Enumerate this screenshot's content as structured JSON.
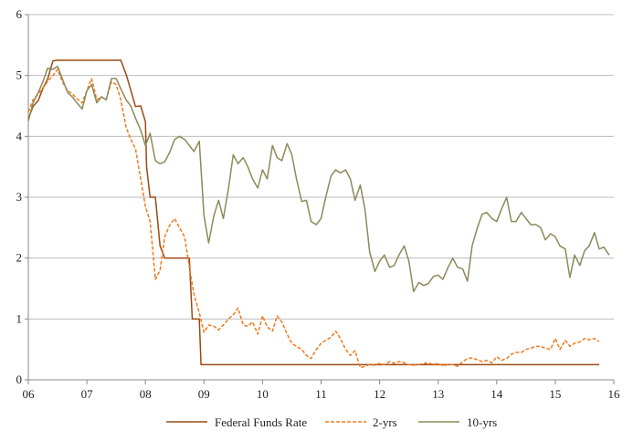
{
  "chart_data": {
    "type": "line",
    "title": "",
    "xlabel": "",
    "ylabel": "",
    "xlim": [
      6,
      16
    ],
    "ylim": [
      0,
      6
    ],
    "x_ticks": [
      {
        "value": 6,
        "label": "06"
      },
      {
        "value": 7,
        "label": "07"
      },
      {
        "value": 8,
        "label": "08"
      },
      {
        "value": 9,
        "label": "09"
      },
      {
        "value": 10,
        "label": "10"
      },
      {
        "value": 11,
        "label": "11"
      },
      {
        "value": 12,
        "label": "12"
      },
      {
        "value": 13,
        "label": "13"
      },
      {
        "value": 14,
        "label": "14"
      },
      {
        "value": 15,
        "label": "15"
      },
      {
        "value": 16,
        "label": "16"
      }
    ],
    "y_ticks": [
      {
        "value": 0,
        "label": "0"
      },
      {
        "value": 1,
        "label": "1"
      },
      {
        "value": 2,
        "label": "2"
      },
      {
        "value": 3,
        "label": "3"
      },
      {
        "value": 4,
        "label": "4"
      },
      {
        "value": 5,
        "label": "5"
      },
      {
        "value": 6,
        "label": "6"
      }
    ],
    "grid": "horizontal",
    "legend_position": "bottom",
    "series": [
      {
        "name": "Federal Funds Rate",
        "color": "#9c4a13",
        "dash": "solid",
        "points": [
          [
            6.0,
            4.29
          ],
          [
            6.08,
            4.49
          ],
          [
            6.17,
            4.59
          ],
          [
            6.25,
            4.79
          ],
          [
            6.33,
            4.94
          ],
          [
            6.42,
            5.24
          ],
          [
            6.5,
            5.25
          ],
          [
            6.58,
            5.25
          ],
          [
            6.67,
            5.25
          ],
          [
            6.75,
            5.25
          ],
          [
            6.83,
            5.25
          ],
          [
            6.92,
            5.25
          ],
          [
            7.0,
            5.25
          ],
          [
            7.08,
            5.25
          ],
          [
            7.17,
            5.25
          ],
          [
            7.25,
            5.25
          ],
          [
            7.33,
            5.25
          ],
          [
            7.42,
            5.25
          ],
          [
            7.5,
            5.25
          ],
          [
            7.58,
            5.25
          ],
          [
            7.67,
            5.02
          ],
          [
            7.75,
            4.76
          ],
          [
            7.83,
            4.49
          ],
          [
            7.92,
            4.5
          ],
          [
            8.0,
            4.24
          ],
          [
            8.02,
            3.5
          ],
          [
            8.08,
            3.0
          ],
          [
            8.17,
            3.0
          ],
          [
            8.25,
            2.2
          ],
          [
            8.33,
            2.0
          ],
          [
            8.42,
            2.0
          ],
          [
            8.5,
            2.0
          ],
          [
            8.58,
            2.0
          ],
          [
            8.67,
            2.0
          ],
          [
            8.75,
            2.0
          ],
          [
            8.8,
            1.0
          ],
          [
            8.83,
            1.0
          ],
          [
            8.92,
            1.0
          ],
          [
            8.95,
            0.25
          ],
          [
            9.0,
            0.25
          ],
          [
            9.5,
            0.25
          ],
          [
            10.0,
            0.25
          ],
          [
            10.5,
            0.25
          ],
          [
            11.0,
            0.25
          ],
          [
            11.5,
            0.25
          ],
          [
            12.0,
            0.25
          ],
          [
            12.5,
            0.25
          ],
          [
            13.0,
            0.25
          ],
          [
            13.5,
            0.25
          ],
          [
            14.0,
            0.25
          ],
          [
            14.5,
            0.25
          ],
          [
            15.0,
            0.25
          ],
          [
            15.5,
            0.25
          ],
          [
            15.75,
            0.25
          ]
        ]
      },
      {
        "name": "2-yrs",
        "color": "#f07a1c",
        "dash": "dashed",
        "points": [
          [
            6.0,
            4.4
          ],
          [
            6.08,
            4.6
          ],
          [
            6.17,
            4.7
          ],
          [
            6.25,
            4.8
          ],
          [
            6.33,
            4.9
          ],
          [
            6.42,
            5.0
          ],
          [
            6.5,
            5.1
          ],
          [
            6.58,
            4.9
          ],
          [
            6.67,
            4.75
          ],
          [
            6.75,
            4.7
          ],
          [
            6.83,
            4.62
          ],
          [
            6.92,
            4.55
          ],
          [
            7.0,
            4.75
          ],
          [
            7.08,
            4.95
          ],
          [
            7.17,
            4.6
          ],
          [
            7.25,
            4.65
          ],
          [
            7.33,
            4.6
          ],
          [
            7.42,
            4.9
          ],
          [
            7.5,
            4.85
          ],
          [
            7.58,
            4.6
          ],
          [
            7.67,
            4.15
          ],
          [
            7.75,
            3.95
          ],
          [
            7.83,
            3.8
          ],
          [
            7.92,
            3.3
          ],
          [
            8.0,
            2.85
          ],
          [
            8.08,
            2.6
          ],
          [
            8.17,
            1.65
          ],
          [
            8.25,
            1.8
          ],
          [
            8.33,
            2.35
          ],
          [
            8.42,
            2.55
          ],
          [
            8.5,
            2.65
          ],
          [
            8.58,
            2.5
          ],
          [
            8.67,
            2.35
          ],
          [
            8.75,
            1.85
          ],
          [
            8.83,
            1.4
          ],
          [
            8.92,
            1.1
          ],
          [
            9.0,
            0.78
          ],
          [
            9.08,
            0.9
          ],
          [
            9.17,
            0.88
          ],
          [
            9.25,
            0.82
          ],
          [
            9.33,
            0.9
          ],
          [
            9.42,
            1.0
          ],
          [
            9.5,
            1.07
          ],
          [
            9.58,
            1.18
          ],
          [
            9.67,
            0.9
          ],
          [
            9.75,
            0.88
          ],
          [
            9.83,
            0.95
          ],
          [
            9.92,
            0.75
          ],
          [
            10.0,
            1.05
          ],
          [
            10.08,
            0.87
          ],
          [
            10.17,
            0.8
          ],
          [
            10.25,
            1.05
          ],
          [
            10.33,
            0.95
          ],
          [
            10.42,
            0.75
          ],
          [
            10.5,
            0.6
          ],
          [
            10.58,
            0.55
          ],
          [
            10.67,
            0.5
          ],
          [
            10.75,
            0.4
          ],
          [
            10.83,
            0.35
          ],
          [
            10.92,
            0.5
          ],
          [
            11.0,
            0.6
          ],
          [
            11.08,
            0.65
          ],
          [
            11.17,
            0.7
          ],
          [
            11.25,
            0.8
          ],
          [
            11.33,
            0.68
          ],
          [
            11.42,
            0.5
          ],
          [
            11.5,
            0.4
          ],
          [
            11.58,
            0.48
          ],
          [
            11.67,
            0.2
          ],
          [
            11.75,
            0.22
          ],
          [
            11.83,
            0.25
          ],
          [
            11.92,
            0.24
          ],
          [
            12.0,
            0.27
          ],
          [
            12.08,
            0.25
          ],
          [
            12.17,
            0.3
          ],
          [
            12.25,
            0.27
          ],
          [
            12.33,
            0.3
          ],
          [
            12.42,
            0.28
          ],
          [
            12.5,
            0.25
          ],
          [
            12.58,
            0.24
          ],
          [
            12.67,
            0.25
          ],
          [
            12.75,
            0.27
          ],
          [
            12.83,
            0.28
          ],
          [
            12.92,
            0.25
          ],
          [
            13.0,
            0.27
          ],
          [
            13.08,
            0.23
          ],
          [
            13.17,
            0.25
          ],
          [
            13.25,
            0.25
          ],
          [
            13.33,
            0.22
          ],
          [
            13.42,
            0.3
          ],
          [
            13.5,
            0.35
          ],
          [
            13.58,
            0.36
          ],
          [
            13.67,
            0.33
          ],
          [
            13.75,
            0.3
          ],
          [
            13.83,
            0.32
          ],
          [
            13.92,
            0.28
          ],
          [
            14.0,
            0.38
          ],
          [
            14.08,
            0.32
          ],
          [
            14.17,
            0.35
          ],
          [
            14.25,
            0.42
          ],
          [
            14.33,
            0.45
          ],
          [
            14.42,
            0.45
          ],
          [
            14.5,
            0.5
          ],
          [
            14.58,
            0.52
          ],
          [
            14.67,
            0.55
          ],
          [
            14.75,
            0.55
          ],
          [
            14.83,
            0.52
          ],
          [
            14.92,
            0.5
          ],
          [
            15.0,
            0.68
          ],
          [
            15.08,
            0.5
          ],
          [
            15.17,
            0.65
          ],
          [
            15.25,
            0.55
          ],
          [
            15.33,
            0.6
          ],
          [
            15.42,
            0.62
          ],
          [
            15.5,
            0.68
          ],
          [
            15.58,
            0.66
          ],
          [
            15.67,
            0.68
          ],
          [
            15.75,
            0.63
          ]
        ]
      },
      {
        "name": "10-yrs",
        "color": "#8c8a5a",
        "dash": "solid",
        "points": [
          [
            6.0,
            4.25
          ],
          [
            6.08,
            4.55
          ],
          [
            6.17,
            4.72
          ],
          [
            6.25,
            4.9
          ],
          [
            6.33,
            5.12
          ],
          [
            6.42,
            5.1
          ],
          [
            6.5,
            5.15
          ],
          [
            6.58,
            4.95
          ],
          [
            6.67,
            4.72
          ],
          [
            6.75,
            4.65
          ],
          [
            6.83,
            4.55
          ],
          [
            6.92,
            4.45
          ],
          [
            7.0,
            4.75
          ],
          [
            7.08,
            4.85
          ],
          [
            7.17,
            4.55
          ],
          [
            7.25,
            4.65
          ],
          [
            7.33,
            4.6
          ],
          [
            7.42,
            4.95
          ],
          [
            7.5,
            4.95
          ],
          [
            7.58,
            4.78
          ],
          [
            7.67,
            4.6
          ],
          [
            7.75,
            4.5
          ],
          [
            7.83,
            4.3
          ],
          [
            7.92,
            4.1
          ],
          [
            8.0,
            3.85
          ],
          [
            8.08,
            4.05
          ],
          [
            8.17,
            3.6
          ],
          [
            8.25,
            3.55
          ],
          [
            8.33,
            3.58
          ],
          [
            8.42,
            3.75
          ],
          [
            8.5,
            3.95
          ],
          [
            8.58,
            4.0
          ],
          [
            8.67,
            3.95
          ],
          [
            8.75,
            3.85
          ],
          [
            8.83,
            3.75
          ],
          [
            8.92,
            3.92
          ],
          [
            9.0,
            2.7
          ],
          [
            9.08,
            2.25
          ],
          [
            9.17,
            2.7
          ],
          [
            9.25,
            2.95
          ],
          [
            9.33,
            2.65
          ],
          [
            9.42,
            3.15
          ],
          [
            9.5,
            3.7
          ],
          [
            9.58,
            3.55
          ],
          [
            9.67,
            3.65
          ],
          [
            9.75,
            3.5
          ],
          [
            9.83,
            3.3
          ],
          [
            9.92,
            3.15
          ],
          [
            10.0,
            3.45
          ],
          [
            10.08,
            3.3
          ],
          [
            10.17,
            3.85
          ],
          [
            10.25,
            3.65
          ],
          [
            10.33,
            3.6
          ],
          [
            10.42,
            3.88
          ],
          [
            10.5,
            3.7
          ],
          [
            10.58,
            3.3
          ],
          [
            10.67,
            2.93
          ],
          [
            10.75,
            2.95
          ],
          [
            10.83,
            2.6
          ],
          [
            10.92,
            2.55
          ],
          [
            11.0,
            2.65
          ],
          [
            11.08,
            3.0
          ],
          [
            11.17,
            3.35
          ],
          [
            11.25,
            3.45
          ],
          [
            11.33,
            3.4
          ],
          [
            11.42,
            3.45
          ],
          [
            11.5,
            3.3
          ],
          [
            11.58,
            2.95
          ],
          [
            11.67,
            3.2
          ],
          [
            11.75,
            2.8
          ],
          [
            11.83,
            2.1
          ],
          [
            11.92,
            1.78
          ],
          [
            12.0,
            1.95
          ],
          [
            12.08,
            2.05
          ],
          [
            12.17,
            1.85
          ],
          [
            12.25,
            1.88
          ],
          [
            12.33,
            2.05
          ],
          [
            12.42,
            2.2
          ],
          [
            12.5,
            1.95
          ],
          [
            12.58,
            1.45
          ],
          [
            12.67,
            1.6
          ],
          [
            12.75,
            1.55
          ],
          [
            12.83,
            1.58
          ],
          [
            12.92,
            1.7
          ],
          [
            13.0,
            1.72
          ],
          [
            13.08,
            1.65
          ],
          [
            13.17,
            1.85
          ],
          [
            13.25,
            2.0
          ],
          [
            13.33,
            1.85
          ],
          [
            13.42,
            1.82
          ],
          [
            13.5,
            1.62
          ],
          [
            13.58,
            2.2
          ],
          [
            13.67,
            2.5
          ],
          [
            13.75,
            2.72
          ],
          [
            13.83,
            2.75
          ],
          [
            13.92,
            2.65
          ],
          [
            14.0,
            2.6
          ],
          [
            14.08,
            2.8
          ],
          [
            14.17,
            3.0
          ],
          [
            14.25,
            2.6
          ],
          [
            14.33,
            2.6
          ],
          [
            14.42,
            2.75
          ],
          [
            14.5,
            2.65
          ],
          [
            14.58,
            2.55
          ],
          [
            14.67,
            2.55
          ],
          [
            14.75,
            2.5
          ],
          [
            14.83,
            2.3
          ],
          [
            14.92,
            2.4
          ],
          [
            15.0,
            2.35
          ],
          [
            15.08,
            2.2
          ],
          [
            15.17,
            2.15
          ],
          [
            15.25,
            1.68
          ],
          [
            15.33,
            2.05
          ],
          [
            15.42,
            1.88
          ],
          [
            15.5,
            2.12
          ],
          [
            15.58,
            2.2
          ],
          [
            15.67,
            2.42
          ],
          [
            15.75,
            2.15
          ],
          [
            15.83,
            2.18
          ],
          [
            15.92,
            2.05
          ]
        ]
      }
    ]
  }
}
